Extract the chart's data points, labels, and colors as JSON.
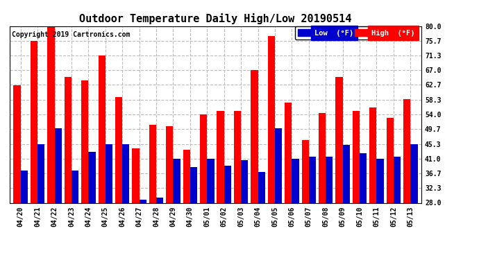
{
  "title": "Outdoor Temperature Daily High/Low 20190514",
  "copyright": "Copyright 2019 Cartronics.com",
  "categories": [
    "04/20",
    "04/21",
    "04/22",
    "04/23",
    "04/24",
    "04/25",
    "04/26",
    "04/27",
    "04/28",
    "04/29",
    "04/30",
    "05/01",
    "05/02",
    "05/03",
    "05/04",
    "05/05",
    "05/06",
    "05/07",
    "05/08",
    "05/09",
    "05/10",
    "05/11",
    "05/12",
    "05/13"
  ],
  "high": [
    62.5,
    75.7,
    80.0,
    65.0,
    64.0,
    71.3,
    59.0,
    44.0,
    51.0,
    50.5,
    43.5,
    54.0,
    55.0,
    55.0,
    67.0,
    77.0,
    57.5,
    46.5,
    54.5,
    65.0,
    55.0,
    56.0,
    53.0,
    58.5
  ],
  "low": [
    37.5,
    45.3,
    50.0,
    37.5,
    43.0,
    45.3,
    45.3,
    29.0,
    29.5,
    41.0,
    38.5,
    41.0,
    39.0,
    40.5,
    37.0,
    50.0,
    41.0,
    41.5,
    41.5,
    45.0,
    42.5,
    41.0,
    41.5,
    45.3
  ],
  "high_color": "#ff0000",
  "low_color": "#0000cc",
  "bg_color": "#ffffff",
  "grid_color": "#bbbbbb",
  "ylim_min": 28.0,
  "ylim_max": 80.0,
  "yticks": [
    28.0,
    32.3,
    36.7,
    41.0,
    45.3,
    49.7,
    54.0,
    58.3,
    62.7,
    67.0,
    71.3,
    75.7,
    80.0
  ],
  "legend_low_label": "Low  (°F)",
  "legend_high_label": "High  (°F)",
  "title_fontsize": 11,
  "copyright_fontsize": 7,
  "tick_fontsize": 7,
  "bar_width": 0.42
}
